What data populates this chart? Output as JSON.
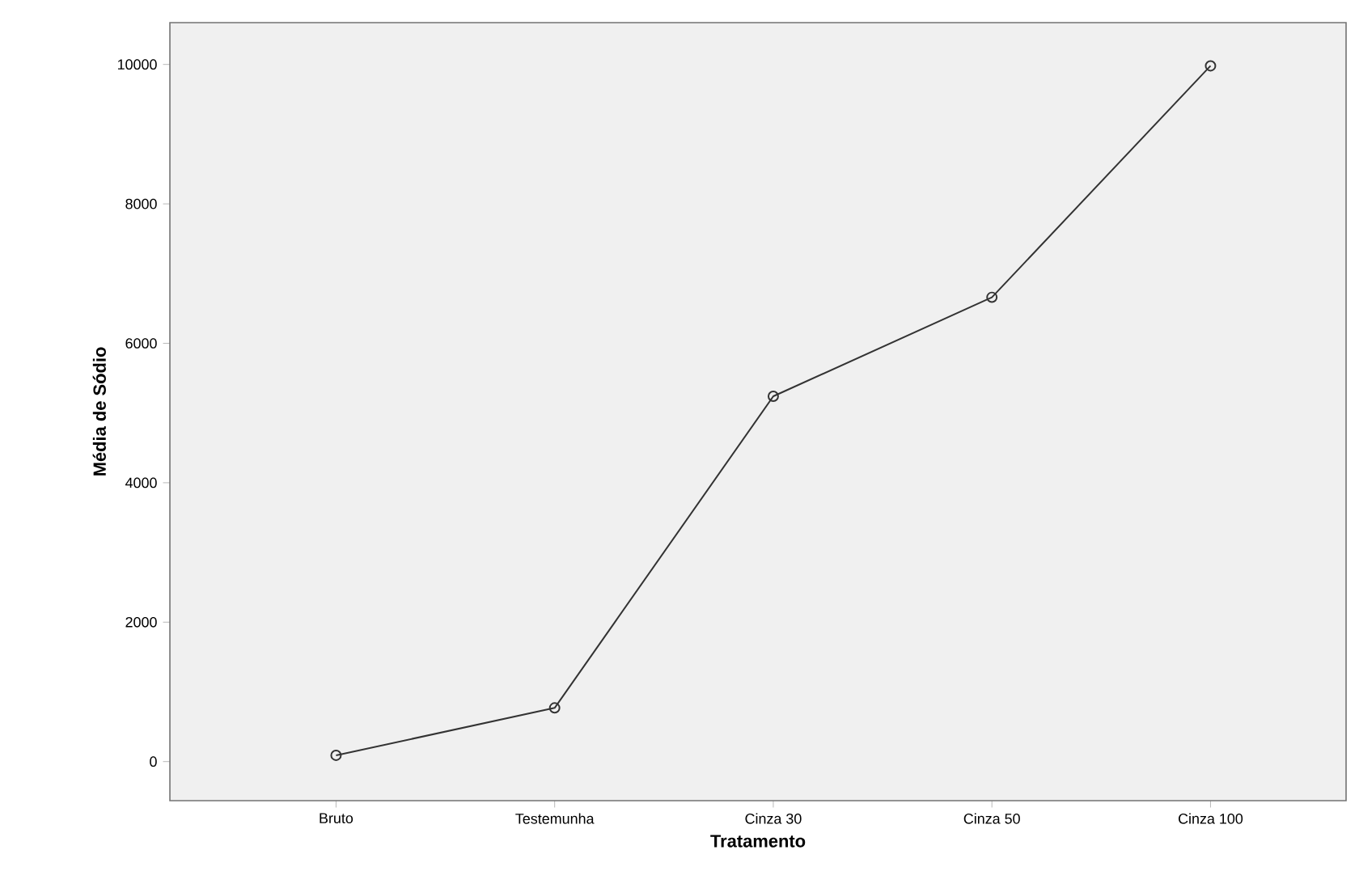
{
  "chart_data": {
    "type": "line",
    "xlabel": "Tratamento",
    "ylabel": "Média de Sódio",
    "categories": [
      "Bruto",
      "Testemunha",
      "Cinza 30",
      "Cinza 50",
      "Cinza 100"
    ],
    "series": [
      {
        "color": "#333333",
        "values": [
          90,
          770,
          5240,
          6660,
          9980
        ]
      }
    ],
    "ylim": [
      -560,
      10600
    ],
    "yticks": [
      0,
      2000,
      4000,
      6000,
      8000,
      10000
    ],
    "grid": false,
    "marker": "circle",
    "line_style": "solid"
  }
}
